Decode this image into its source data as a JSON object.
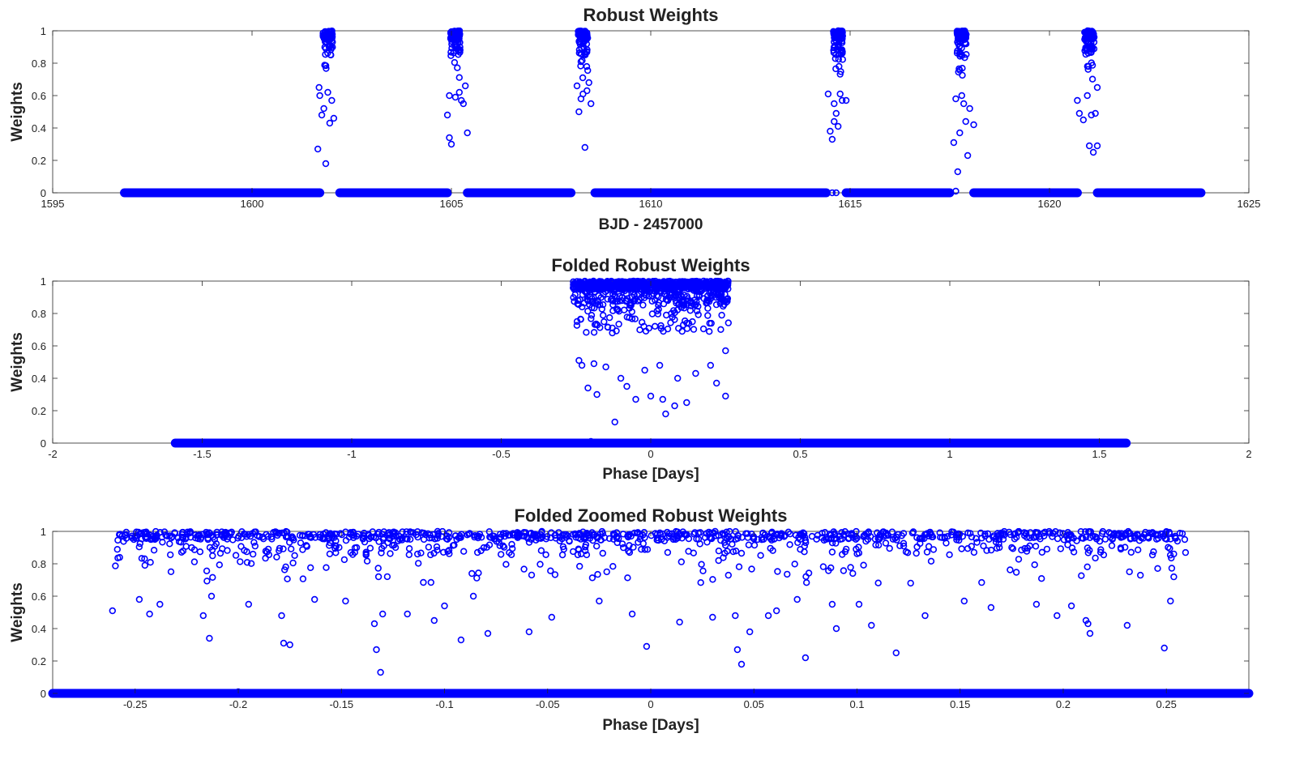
{
  "chart_data": [
    {
      "type": "scatter",
      "title": "Robust Weights",
      "xlabel": "BJD - 2457000",
      "ylabel": "Weights",
      "xlim": [
        1595,
        1625
      ],
      "ylim": [
        0,
        1
      ],
      "xticks": [
        "1595",
        "1600",
        "1605",
        "1610",
        "1615",
        "1620",
        "1625"
      ],
      "yticks": [
        "0",
        "0.2",
        "0.4",
        "0.6",
        "0.8",
        "1"
      ],
      "marker": "open-circle",
      "color": "#0000ff",
      "zero_weight_segments": [
        [
          1596.8,
          1601.7
        ],
        [
          1602.2,
          1604.9
        ],
        [
          1605.4,
          1608.0
        ],
        [
          1608.6,
          1614.4
        ],
        [
          1614.9,
          1617.5
        ],
        [
          1618.1,
          1620.7
        ],
        [
          1621.2,
          1623.8
        ]
      ],
      "transit_centers": [
        1601.9,
        1605.1,
        1608.3,
        1614.7,
        1617.8,
        1621.0
      ],
      "transit_half_width": 0.3,
      "points": [
        [
          1601.65,
          0.27
        ],
        [
          1601.85,
          0.18
        ],
        [
          1601.75,
          0.48
        ],
        [
          1601.95,
          0.43
        ],
        [
          1602.05,
          0.46
        ],
        [
          1601.7,
          0.6
        ],
        [
          1601.9,
          0.62
        ],
        [
          1601.8,
          0.52
        ],
        [
          1602.0,
          0.57
        ],
        [
          1601.68,
          0.65
        ],
        [
          1604.95,
          0.34
        ],
        [
          1605.0,
          0.3
        ],
        [
          1604.9,
          0.48
        ],
        [
          1605.1,
          0.59
        ],
        [
          1605.3,
          0.55
        ],
        [
          1605.2,
          0.62
        ],
        [
          1605.4,
          0.37
        ],
        [
          1605.35,
          0.66
        ],
        [
          1604.95,
          0.6
        ],
        [
          1605.25,
          0.57
        ],
        [
          1608.35,
          0.28
        ],
        [
          1608.2,
          0.5
        ],
        [
          1608.25,
          0.58
        ],
        [
          1608.3,
          0.61
        ],
        [
          1608.5,
          0.55
        ],
        [
          1608.4,
          0.63
        ],
        [
          1608.45,
          0.68
        ],
        [
          1608.15,
          0.66
        ],
        [
          1614.55,
          0.33
        ],
        [
          1614.5,
          0.38
        ],
        [
          1614.6,
          0.44
        ],
        [
          1614.65,
          0.49
        ],
        [
          1614.7,
          0.41
        ],
        [
          1614.6,
          0.55
        ],
        [
          1614.8,
          0.57
        ],
        [
          1614.9,
          0.57
        ],
        [
          1614.45,
          0.61
        ],
        [
          1614.75,
          0.61
        ],
        [
          1614.55,
          0.0
        ],
        [
          1614.65,
          0.0
        ],
        [
          1617.65,
          0.01
        ],
        [
          1617.7,
          0.13
        ],
        [
          1617.6,
          0.31
        ],
        [
          1617.75,
          0.37
        ],
        [
          1617.9,
          0.44
        ],
        [
          1617.95,
          0.23
        ],
        [
          1618.1,
          0.42
        ],
        [
          1617.65,
          0.58
        ],
        [
          1617.85,
          0.55
        ],
        [
          1618.0,
          0.52
        ],
        [
          1617.8,
          0.6
        ],
        [
          1620.75,
          0.49
        ],
        [
          1620.85,
          0.45
        ],
        [
          1621.0,
          0.29
        ],
        [
          1621.1,
          0.25
        ],
        [
          1621.2,
          0.29
        ],
        [
          1621.05,
          0.48
        ],
        [
          1621.15,
          0.49
        ],
        [
          1620.7,
          0.57
        ],
        [
          1620.95,
          0.6
        ],
        [
          1621.2,
          0.65
        ]
      ]
    },
    {
      "type": "scatter",
      "title": "Folded Robust Weights",
      "xlabel": "Phase [Days]",
      "ylabel": "Weights",
      "xlim": [
        -2,
        2
      ],
      "ylim": [
        0,
        1
      ],
      "xticks": [
        "-2",
        "-1.5",
        "-1",
        "-0.5",
        "0",
        "0.5",
        "1",
        "1.5",
        "2"
      ],
      "yticks": [
        "0",
        "0.2",
        "0.4",
        "0.6",
        "0.8",
        "1"
      ],
      "marker": "open-circle",
      "color": "#0000ff",
      "zero_weight_segments": [
        [
          -1.59,
          1.59
        ]
      ],
      "transit_range": [
        -0.26,
        0.26
      ],
      "points": [
        [
          -0.2,
          0.01
        ],
        [
          -0.12,
          0.13
        ],
        [
          0.05,
          0.18
        ],
        [
          0.08,
          0.23
        ],
        [
          -0.18,
          0.3
        ],
        [
          0.0,
          0.29
        ],
        [
          0.12,
          0.25
        ],
        [
          0.25,
          0.29
        ],
        [
          -0.21,
          0.34
        ],
        [
          -0.05,
          0.27
        ],
        [
          0.04,
          0.27
        ],
        [
          0.22,
          0.37
        ],
        [
          -0.24,
          0.51
        ],
        [
          -0.23,
          0.48
        ],
        [
          -0.19,
          0.49
        ],
        [
          -0.1,
          0.4
        ],
        [
          -0.02,
          0.45
        ],
        [
          0.09,
          0.4
        ],
        [
          0.2,
          0.48
        ],
        [
          0.25,
          0.57
        ],
        [
          -0.15,
          0.47
        ],
        [
          -0.08,
          0.35
        ],
        [
          0.03,
          0.48
        ],
        [
          0.15,
          0.43
        ]
      ]
    },
    {
      "type": "scatter",
      "title": "Folded Zoomed Robust Weights",
      "xlabel": "Phase [Days]",
      "ylabel": "Weights",
      "xlim": [
        -0.29,
        0.29
      ],
      "ylim": [
        0,
        1
      ],
      "xticks": [
        "-0.25",
        "-0.2",
        "-0.15",
        "-0.1",
        "-0.05",
        "0",
        "0.05",
        "0.1",
        "0.15",
        "0.2",
        "0.25"
      ],
      "yticks": [
        "0",
        "0.2",
        "0.4",
        "0.6",
        "0.8",
        "1"
      ],
      "marker": "open-circle",
      "color": "#0000ff",
      "zero_weight_segments": [
        [
          -0.29,
          0.29
        ]
      ],
      "transit_range": [
        -0.26,
        0.26
      ],
      "points": [
        [
          -0.2,
          0.01
        ],
        [
          -0.131,
          0.13
        ],
        [
          -0.133,
          0.27
        ],
        [
          0.044,
          0.18
        ],
        [
          0.075,
          0.22
        ],
        [
          0.042,
          0.27
        ],
        [
          -0.002,
          0.29
        ],
        [
          0.119,
          0.25
        ],
        [
          0.249,
          0.28
        ],
        [
          -0.214,
          0.34
        ],
        [
          -0.178,
          0.31
        ],
        [
          -0.175,
          0.3
        ],
        [
          -0.092,
          0.33
        ],
        [
          -0.079,
          0.37
        ],
        [
          -0.059,
          0.38
        ],
        [
          0.213,
          0.37
        ],
        [
          0.231,
          0.42
        ],
        [
          0.048,
          0.38
        ],
        [
          -0.261,
          0.51
        ],
        [
          -0.243,
          0.49
        ],
        [
          -0.217,
          0.48
        ],
        [
          -0.179,
          0.48
        ],
        [
          -0.134,
          0.43
        ],
        [
          -0.13,
          0.49
        ],
        [
          -0.118,
          0.49
        ],
        [
          -0.105,
          0.45
        ],
        [
          -0.048,
          0.47
        ],
        [
          0.014,
          0.44
        ],
        [
          0.03,
          0.47
        ],
        [
          0.041,
          0.48
        ],
        [
          0.057,
          0.48
        ],
        [
          0.09,
          0.4
        ],
        [
          0.107,
          0.42
        ],
        [
          0.133,
          0.48
        ],
        [
          0.197,
          0.48
        ],
        [
          0.211,
          0.45
        ],
        [
          0.252,
          0.57
        ],
        [
          -0.248,
          0.58
        ],
        [
          -0.238,
          0.55
        ],
        [
          -0.213,
          0.6
        ],
        [
          -0.195,
          0.55
        ],
        [
          -0.163,
          0.58
        ],
        [
          -0.148,
          0.57
        ],
        [
          -0.1,
          0.54
        ],
        [
          -0.086,
          0.6
        ],
        [
          -0.025,
          0.57
        ],
        [
          -0.009,
          0.49
        ],
        [
          0.061,
          0.51
        ],
        [
          0.071,
          0.58
        ],
        [
          0.088,
          0.55
        ],
        [
          0.101,
          0.55
        ],
        [
          0.152,
          0.57
        ],
        [
          0.165,
          0.53
        ],
        [
          0.187,
          0.55
        ],
        [
          0.204,
          0.54
        ],
        [
          0.212,
          0.43
        ]
      ]
    }
  ]
}
